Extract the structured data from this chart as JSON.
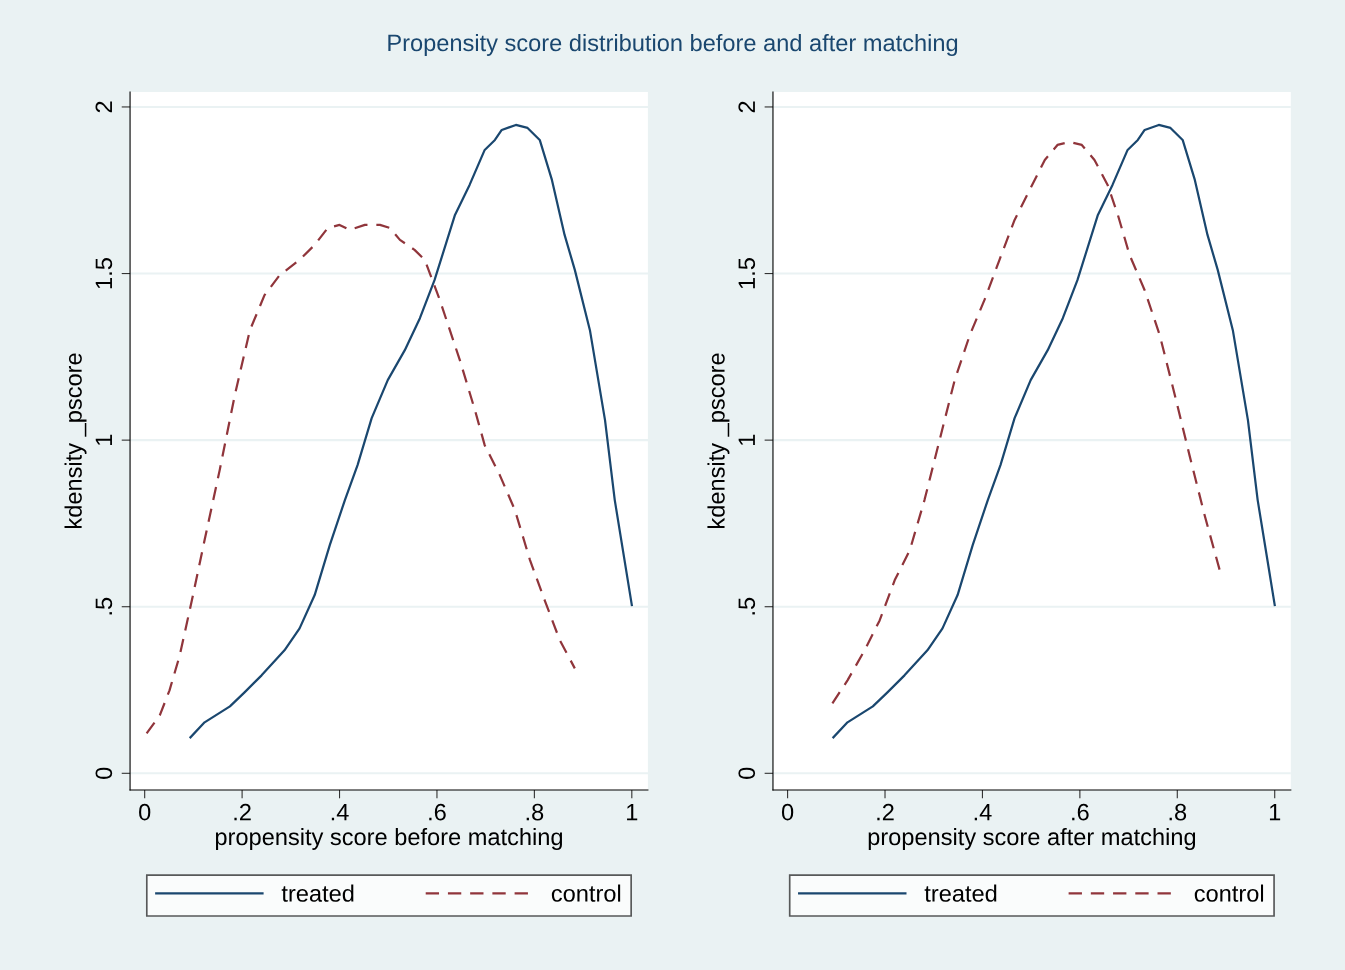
{
  "chart_data": [
    {
      "type": "line",
      "title": "Propensity score distribution before and after matching",
      "xlabel": "propensity score before matching",
      "ylabel": "kdensity _pscore",
      "xlim": [
        -0.03,
        1.033
      ],
      "ylim": [
        -0.05,
        2.045
      ],
      "xticks": [
        0,
        {
          "value": 0.2,
          "label": ".2"
        },
        {
          "value": 0.4,
          "label": ".4"
        },
        {
          "value": 0.6,
          "label": ".6"
        },
        {
          "value": 0.8,
          "label": ".8"
        },
        1
      ],
      "yticks": [
        0,
        {
          "value": 0.5,
          "label": ".5"
        },
        1,
        1.5,
        2
      ],
      "grid": "y",
      "legend": "bottom",
      "series": [
        {
          "name": "treated",
          "color": "#1a476f",
          "line_style": "solid",
          "x": [
            0.094,
            0.123,
            0.175,
            0.205,
            0.24,
            0.287,
            0.318,
            0.349,
            0.38,
            0.411,
            0.437,
            0.466,
            0.499,
            0.534,
            0.565,
            0.595,
            0.637,
            0.667,
            0.698,
            0.719,
            0.733,
            0.762,
            0.786,
            0.811,
            0.836,
            0.862,
            0.883,
            0.914,
            0.945,
            0.965,
            1.0
          ],
          "values": [
            0.108,
            0.153,
            0.201,
            0.243,
            0.294,
            0.369,
            0.435,
            0.535,
            0.685,
            0.82,
            0.925,
            1.066,
            1.18,
            1.27,
            1.366,
            1.48,
            1.676,
            1.766,
            1.871,
            1.901,
            1.931,
            1.946,
            1.937,
            1.901,
            1.781,
            1.616,
            1.511,
            1.33,
            1.06,
            0.82,
            0.505
          ]
        },
        {
          "name": "control",
          "color": "#90353b",
          "line_style": "dashed",
          "x": [
            0.004,
            0.031,
            0.051,
            0.072,
            0.097,
            0.123,
            0.154,
            0.185,
            0.216,
            0.246,
            0.277,
            0.318,
            0.349,
            0.376,
            0.4,
            0.421,
            0.452,
            0.483,
            0.503,
            0.524,
            0.554,
            0.575,
            0.606,
            0.647,
            0.678,
            0.698,
            0.729,
            0.76,
            0.791,
            0.821,
            0.852,
            0.883
          ],
          "values": [
            0.12,
            0.174,
            0.249,
            0.354,
            0.52,
            0.7,
            0.91,
            1.135,
            1.33,
            1.435,
            1.495,
            1.541,
            1.586,
            1.637,
            1.646,
            1.631,
            1.646,
            1.646,
            1.637,
            1.601,
            1.571,
            1.541,
            1.42,
            1.24,
            1.09,
            0.985,
            0.895,
            0.79,
            0.64,
            0.52,
            0.4,
            0.315
          ]
        }
      ]
    },
    {
      "type": "line",
      "xlabel": "propensity score after matching",
      "ylabel": "kdensity _pscore",
      "xlim": [
        -0.03,
        1.033
      ],
      "ylim": [
        -0.05,
        2.045
      ],
      "xticks": [
        0,
        {
          "value": 0.2,
          "label": ".2"
        },
        {
          "value": 0.4,
          "label": ".4"
        },
        {
          "value": 0.6,
          "label": ".6"
        },
        {
          "value": 0.8,
          "label": ".8"
        },
        1
      ],
      "yticks": [
        0,
        {
          "value": 0.5,
          "label": ".5"
        },
        1,
        1.5,
        2
      ],
      "grid": "y",
      "legend": "bottom",
      "series": [
        {
          "name": "treated",
          "color": "#1a476f",
          "line_style": "solid",
          "x": [
            0.094,
            0.123,
            0.175,
            0.205,
            0.24,
            0.287,
            0.318,
            0.349,
            0.38,
            0.411,
            0.437,
            0.466,
            0.499,
            0.534,
            0.565,
            0.595,
            0.637,
            0.667,
            0.698,
            0.719,
            0.733,
            0.762,
            0.786,
            0.811,
            0.836,
            0.862,
            0.883,
            0.914,
            0.945,
            0.965,
            1.0
          ],
          "values": [
            0.108,
            0.153,
            0.201,
            0.243,
            0.294,
            0.369,
            0.435,
            0.535,
            0.685,
            0.82,
            0.925,
            1.066,
            1.18,
            1.27,
            1.366,
            1.48,
            1.676,
            1.766,
            1.871,
            1.901,
            1.931,
            1.946,
            1.937,
            1.901,
            1.781,
            1.616,
            1.511,
            1.33,
            1.06,
            0.82,
            0.505
          ]
        },
        {
          "name": "control",
          "color": "#90353b",
          "line_style": "dashed",
          "x": [
            0.092,
            0.123,
            0.158,
            0.189,
            0.22,
            0.251,
            0.281,
            0.312,
            0.343,
            0.374,
            0.404,
            0.435,
            0.466,
            0.497,
            0.528,
            0.554,
            0.579,
            0.604,
            0.63,
            0.657,
            0.678,
            0.702,
            0.733,
            0.764,
            0.795,
            0.825,
            0.856,
            0.887
          ],
          "values": [
            0.21,
            0.279,
            0.369,
            0.459,
            0.58,
            0.67,
            0.82,
            1.0,
            1.18,
            1.315,
            1.42,
            1.541,
            1.661,
            1.751,
            1.841,
            1.886,
            1.895,
            1.886,
            1.841,
            1.766,
            1.676,
            1.556,
            1.45,
            1.315,
            1.135,
            0.955,
            0.775,
            0.61
          ]
        }
      ]
    }
  ]
}
